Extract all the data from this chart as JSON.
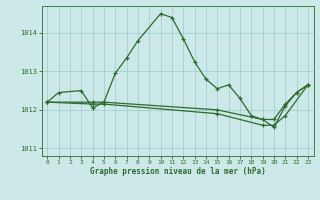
{
  "background_color": "#cce8e8",
  "grid_color": "#99cccc",
  "line_color": "#2d6b2d",
  "xlabel": "Graphe pression niveau de la mer (hPa)",
  "xlim": [
    -0.5,
    23.5
  ],
  "ylim": [
    1010.8,
    1014.7
  ],
  "yticks": [
    1011,
    1012,
    1013,
    1014
  ],
  "xticks": [
    0,
    1,
    2,
    3,
    4,
    5,
    6,
    7,
    8,
    9,
    10,
    11,
    12,
    13,
    14,
    15,
    16,
    17,
    18,
    19,
    20,
    21,
    22,
    23
  ],
  "series1_x": [
    0,
    1,
    3,
    4,
    5,
    6,
    7,
    8,
    10,
    11,
    12,
    13,
    14,
    15,
    16,
    17,
    18,
    19,
    20,
    21,
    22,
    23
  ],
  "series1_y": [
    1012.2,
    1012.45,
    1012.5,
    1012.05,
    1012.2,
    1012.95,
    1013.35,
    1013.8,
    1014.5,
    1014.4,
    1013.85,
    1013.25,
    1012.8,
    1012.55,
    1012.65,
    1012.3,
    1011.85,
    1011.75,
    1011.55,
    1012.1,
    1012.45,
    1012.65
  ],
  "series2_x": [
    0,
    4,
    5,
    15,
    19,
    20,
    21,
    22,
    23
  ],
  "series2_y": [
    1012.2,
    1012.2,
    1012.2,
    1012.0,
    1011.75,
    1011.75,
    1012.15,
    1012.45,
    1012.65
  ],
  "series3_x": [
    0,
    4,
    5,
    15,
    19,
    20,
    21,
    23
  ],
  "series3_y": [
    1012.2,
    1012.15,
    1012.15,
    1011.9,
    1011.6,
    1011.6,
    1011.85,
    1012.65
  ]
}
